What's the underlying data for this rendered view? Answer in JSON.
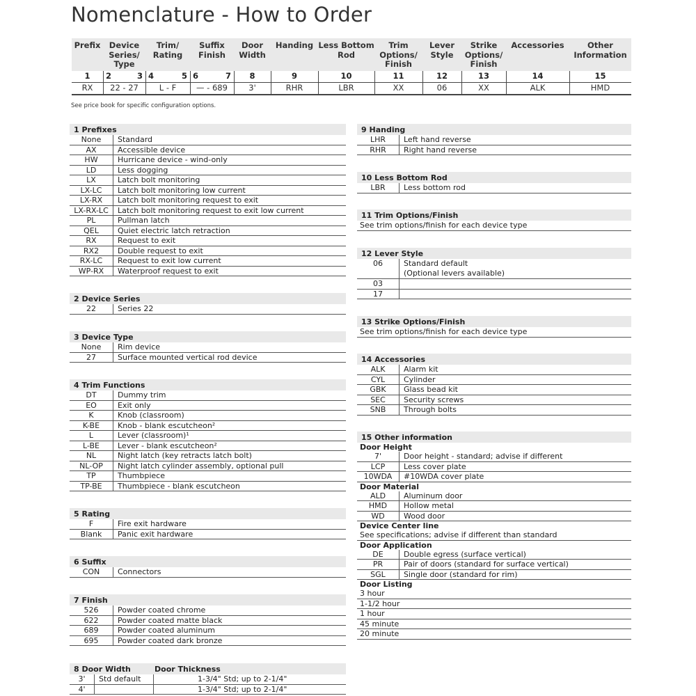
{
  "title": "Nomenclature - How to Order",
  "order_table": {
    "headers": [
      "Prefix",
      "Device Series/ Type",
      "Trim/ Rating",
      "Suffix Finish",
      "Door Width",
      "Handing",
      "Less Bottom Rod",
      "Trim Options/ Finish",
      "Lever Style",
      "Strike Options/ Finish",
      "Accessories",
      "Other Information"
    ],
    "numbers": [
      "1",
      "2",
      "3",
      "4",
      "5",
      "6",
      "7",
      "8",
      "9",
      "10",
      "11",
      "12",
      "13",
      "14",
      "15"
    ],
    "values": [
      "RX",
      "22  -  27",
      "L  -  F",
      "— - 689",
      "3'",
      "RHR",
      "LBR",
      "XX",
      "06",
      "XX",
      "ALK",
      "HMD"
    ]
  },
  "note": "See price book for specific configuration options.",
  "sections": [
    {
      "title": "1 Prefixes",
      "rows": [
        [
          "None",
          "Standard"
        ],
        [
          "AX",
          "Accessible device"
        ],
        [
          "HW",
          "Hurricane device - wind-only"
        ],
        [
          "LD",
          "Less dogging"
        ],
        [
          "LX",
          "Latch bolt monitoring"
        ],
        [
          "LX-LC",
          "Latch bolt monitoring low current"
        ],
        [
          "LX-RX",
          "Latch bolt monitoring request to exit"
        ],
        [
          "LX-RX-LC",
          "Latch bolt monitoring request to exit low current"
        ],
        [
          "PL",
          "Pullman latch"
        ],
        [
          "QEL",
          "Quiet electric latch retraction"
        ],
        [
          "RX",
          "Request to exit"
        ],
        [
          "RX2",
          "Double request to exit"
        ],
        [
          "RX-LC",
          "Request to exit low current"
        ],
        [
          "WP-RX",
          "Waterproof request to exit"
        ]
      ]
    },
    {
      "title": "2 Device Series",
      "rows": [
        [
          "22",
          "Series 22"
        ]
      ]
    },
    {
      "title": "3 Device Type",
      "rows": [
        [
          "None",
          "Rim device"
        ],
        [
          "27",
          "Surface mounted vertical rod device"
        ]
      ]
    },
    {
      "title": "4 Trim Functions",
      "rows": [
        [
          "DT",
          "Dummy trim"
        ],
        [
          "EO",
          "Exit only"
        ],
        [
          "K",
          "Knob (classroom)"
        ],
        [
          "K-BE",
          "Knob - blank escutcheon²"
        ],
        [
          "L",
          "Lever (classroom)¹"
        ],
        [
          "L-BE",
          "Lever - blank escutcheon²"
        ],
        [
          "NL",
          "Night latch (key retracts latch bolt)"
        ],
        [
          "NL-OP",
          "Night latch cylinder assembly, optional pull"
        ],
        [
          "TP",
          "Thumbpiece"
        ],
        [
          "TP-BE",
          "Thumbpiece - blank escutcheon"
        ]
      ]
    },
    {
      "title": "5 Rating",
      "rows": [
        [
          "F",
          "Fire exit hardware"
        ],
        [
          "Blank",
          "Panic exit hardware"
        ]
      ]
    },
    {
      "title": "6 Suffix",
      "rows": [
        [
          "CON",
          "Connectors"
        ]
      ]
    },
    {
      "title": "7 Finish",
      "rows": [
        [
          "526",
          "Powder coated chrome"
        ],
        [
          "622",
          "Powder coated matte black"
        ],
        [
          "689",
          "Powder coated aluminum"
        ],
        [
          "695",
          "Powder coated dark bronze"
        ]
      ]
    },
    {
      "title": "8 Door Width",
      "title2": "Door Thickness",
      "rows": [
        [
          "3'",
          "Std default",
          "1-3/4\" Std; up to 2-1/4\""
        ],
        [
          "4'",
          "",
          "1-3/4\" Std; up to 2-1/4\""
        ]
      ]
    },
    {
      "title": "9 Handing",
      "rows": [
        [
          "LHR",
          "Left hand reverse"
        ],
        [
          "RHR",
          "Right hand reverse"
        ]
      ]
    },
    {
      "title": "10 Less Bottom Rod",
      "rows": [
        [
          "LBR",
          "Less bottom rod"
        ]
      ]
    },
    {
      "title": "11 Trim Options/Finish",
      "rows": [
        [
          "",
          "See trim options/finish for each device type"
        ]
      ]
    },
    {
      "title": "12 Lever Style",
      "rows": [
        [
          "06",
          "Standard default\n(Optional levers available)"
        ],
        [
          "03",
          ""
        ],
        [
          "17",
          ""
        ]
      ]
    },
    {
      "title": "13 Strike Options/Finish",
      "rows": [
        [
          "",
          "See trim options/finish for each device type"
        ]
      ]
    },
    {
      "title": "14 Accessories",
      "rows": [
        [
          "ALK",
          "Alarm kit"
        ],
        [
          "CYL",
          "Cylinder"
        ],
        [
          "GBK",
          "Glass bead kit"
        ],
        [
          "SEC",
          "Security screws"
        ],
        [
          "SNB",
          "Through bolts"
        ]
      ]
    },
    {
      "title": "15 Other information",
      "rows": [
        [
          "#",
          "Door Height"
        ],
        [
          "7'",
          "Door height - standard; advise if different"
        ],
        [
          "LCP",
          "Less cover plate"
        ],
        [
          "10WDA",
          "#10WDA cover plate"
        ],
        [
          "#",
          "Door Material"
        ],
        [
          "ALD",
          "Aluminum door"
        ],
        [
          "HMD",
          "Hollow metal"
        ],
        [
          "WD",
          "Wood door"
        ],
        [
          "#",
          "Device Center line"
        ],
        [
          "",
          "See specifications; advise if different than standard"
        ],
        [
          "#",
          "Door Application"
        ],
        [
          "DE",
          "Double egress (surface vertical)"
        ],
        [
          "PR",
          "Pair of doors (standard for surface vertical)"
        ],
        [
          "SGL",
          "Single door (standard for rim)"
        ],
        [
          "#",
          "Door Listing"
        ],
        [
          "",
          "3 hour"
        ],
        [
          "",
          "1-1/2 hour"
        ],
        [
          "",
          "1 hour"
        ],
        [
          "",
          "45 minute"
        ],
        [
          "",
          "20 minute"
        ]
      ]
    }
  ]
}
